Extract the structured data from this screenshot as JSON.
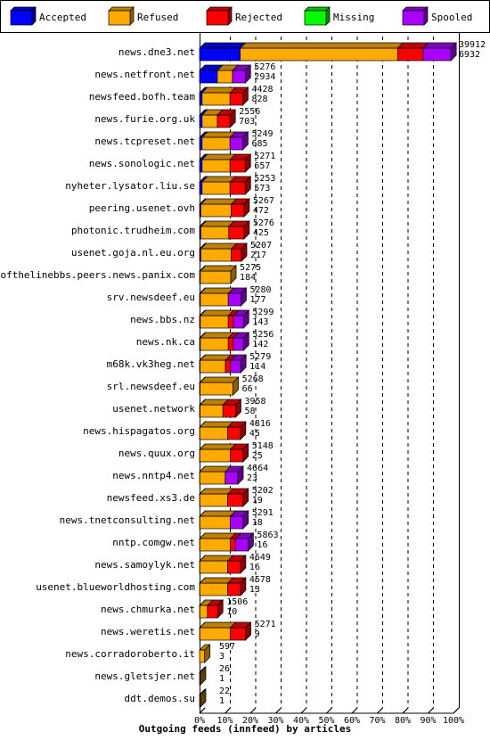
{
  "chart_data": {
    "type": "bar",
    "orientation": "horizontal",
    "stacked": true,
    "title": "Outgoing feeds (innfeed) by articles",
    "legend": [
      {
        "name": "Accepted",
        "color": "#0000ff"
      },
      {
        "name": "Refused",
        "color": "#ffaa00"
      },
      {
        "name": "Rejected",
        "color": "#ff0000"
      },
      {
        "name": "Missing",
        "color": "#00ff00"
      },
      {
        "name": "Spooled",
        "color": "#aa00ff"
      }
    ],
    "legend_position": "top",
    "xlim": [
      0,
      100
    ],
    "x_ticks": [
      "0%",
      "10%",
      "20%",
      "30%",
      "40%",
      "50%",
      "60%",
      "70%",
      "80%",
      "90%",
      "100%"
    ],
    "grid": true,
    "categories": [
      "news.dne3.net",
      "news.netfront.net",
      "newsfeed.bofh.team",
      "news.furie.org.uk",
      "news.tcpreset.net",
      "news.sonologic.net",
      "nyheter.lysator.liu.se",
      "peering.usenet.ovh",
      "photonic.trudheim.com",
      "usenet.goja.nl.eu.org",
      "endofthelinebbs.peers.news.panix.com",
      "srv.newsdeef.eu",
      "news.bbs.nz",
      "news.nk.ca",
      "m68k.vk3heg.net",
      "srl.newsdeef.eu",
      "usenet.network",
      "news.hispagatos.org",
      "news.quux.org",
      "news.nntp4.net",
      "newsfeed.xs3.de",
      "news.tnetconsulting.net",
      "nntp.comgw.net",
      "news.samoylyk.net",
      "usenet.blueworldhosting.com",
      "news.chmurka.net",
      "news.weretis.net",
      "news.corradoroberto.it",
      "news.gletsjer.net",
      "ddt.demos.su"
    ],
    "offered": [
      39912,
      5276,
      4428,
      2556,
      5249,
      5271,
      5253,
      5267,
      5276,
      5207,
      5275,
      5280,
      5299,
      5256,
      5279,
      5268,
      3958,
      4816,
      5148,
      4664,
      5202,
      5291,
      5863,
      4649,
      4578,
      1506,
      5271,
      597,
      26,
      22
    ],
    "accepted": [
      6932,
      2934,
      828,
      703,
      685,
      657,
      573,
      472,
      425,
      217,
      184,
      177,
      143,
      142,
      114,
      66,
      58,
      45,
      25,
      23,
      19,
      18,
      16,
      16,
      13,
      10,
      9,
      3,
      1,
      1
    ],
    "series": [
      {
        "name": "Accepted",
        "values": [
          16,
          7,
          1,
          1,
          1,
          1,
          1,
          0.5,
          0.5,
          0.5,
          0.3,
          0.3,
          0.3,
          0.3,
          0.2,
          0.2,
          0.2,
          0.1,
          0.1,
          0.1,
          0.1,
          0.1,
          0.1,
          0.1,
          0.1,
          0.1,
          0.1,
          0,
          0,
          0
        ]
      },
      {
        "name": "Refused",
        "values": [
          62,
          6,
          11,
          6,
          11,
          11,
          11,
          12,
          11,
          12,
          12,
          11,
          11,
          11,
          10,
          13,
          9,
          11,
          12,
          10,
          11,
          12,
          12,
          11,
          11,
          3,
          12,
          2,
          0.1,
          0.1
        ]
      },
      {
        "name": "Rejected",
        "values": [
          10,
          0,
          5,
          5,
          0,
          6,
          6,
          5,
          6,
          4,
          0,
          0,
          2,
          2,
          2,
          0,
          5,
          5,
          5,
          0,
          6,
          0,
          2,
          5,
          5,
          4,
          6,
          0,
          0,
          0
        ]
      },
      {
        "name": "Missing",
        "values": [
          0,
          0,
          0,
          0,
          0,
          0,
          0,
          0,
          0,
          0,
          0,
          0,
          0,
          0,
          0,
          0,
          0,
          0,
          0,
          0,
          0,
          0,
          0,
          0,
          0,
          0,
          0,
          0,
          0,
          0
        ]
      },
      {
        "name": "Spooled",
        "values": [
          11,
          5,
          0,
          0,
          5,
          0,
          0,
          0,
          0,
          0,
          0,
          5,
          4,
          4,
          4,
          0,
          0,
          0,
          0,
          5,
          0,
          5,
          5,
          0,
          0,
          0,
          0,
          0,
          0,
          0
        ]
      }
    ],
    "colors": {
      "refused_light": "#ffaa00",
      "refused_dark": "#aa7700",
      "frame": "#000000",
      "background": "#ffffff"
    }
  }
}
